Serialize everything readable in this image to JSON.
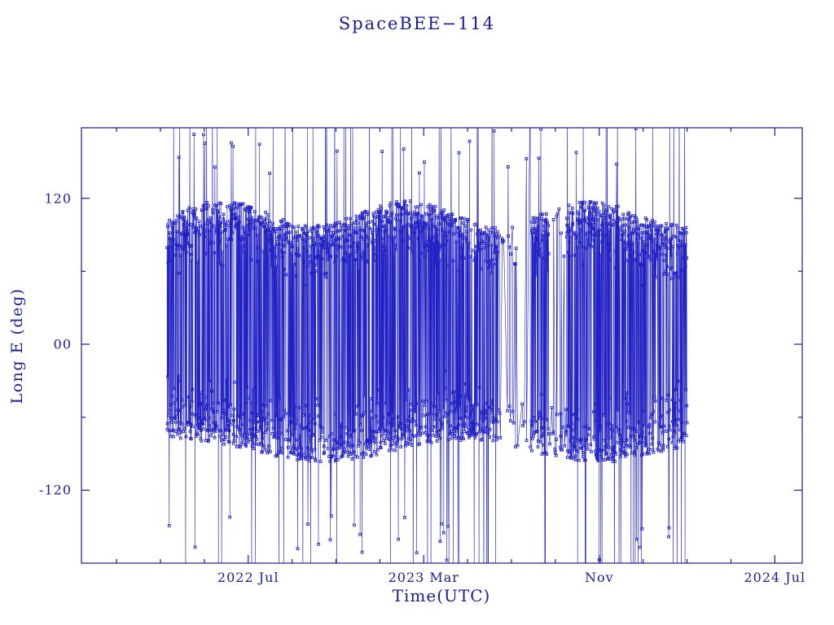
{
  "colors": {
    "background": "#ffffff",
    "text": "#1b1b9a",
    "frame": "#1b1b9a",
    "data": "#2222c4"
  },
  "chart_data": {
    "type": "scatter",
    "title": "SpaceBEE−114",
    "xlabel": "Time(UTC)",
    "ylabel": "Long E (deg)",
    "x_unit": "months since 2022-01-01",
    "xlim": [
      -1.6,
      31.25
    ],
    "ylim": [
      -180,
      178
    ],
    "x_ticks": [
      {
        "value": 6,
        "label": "2022 Jul"
      },
      {
        "value": 14,
        "label": "2023 Mar"
      },
      {
        "value": 22,
        "label": "Nov"
      },
      {
        "value": 30,
        "label": "2024 Jul"
      }
    ],
    "y_ticks": [
      {
        "value": 120,
        "label": "120"
      },
      {
        "value": 0,
        "label": "00"
      },
      {
        "value": -120,
        "label": "-120"
      }
    ],
    "x_minor_step": 2,
    "y_minor_step": 60,
    "grid": false,
    "legend": null,
    "marker": "open-square",
    "marker_size": 2.8,
    "line_width": 0.6,
    "approximation": true,
    "series_generator": {
      "seed": 114,
      "n_points": 2600,
      "t_start": 2.3,
      "t_end": 26.0,
      "band_top": 108,
      "band_bottom": -88,
      "upper_spread": 65,
      "lower_spread": 65,
      "upper_fraction": 0.56,
      "wrap_prob": 0.055,
      "wrap_min": 140,
      "wrap_span": 95,
      "sparse_ranges": [
        [
          17.4,
          18.9
        ],
        [
          19.7,
          20.5
        ]
      ],
      "sparse_keep": 0.18
    }
  }
}
